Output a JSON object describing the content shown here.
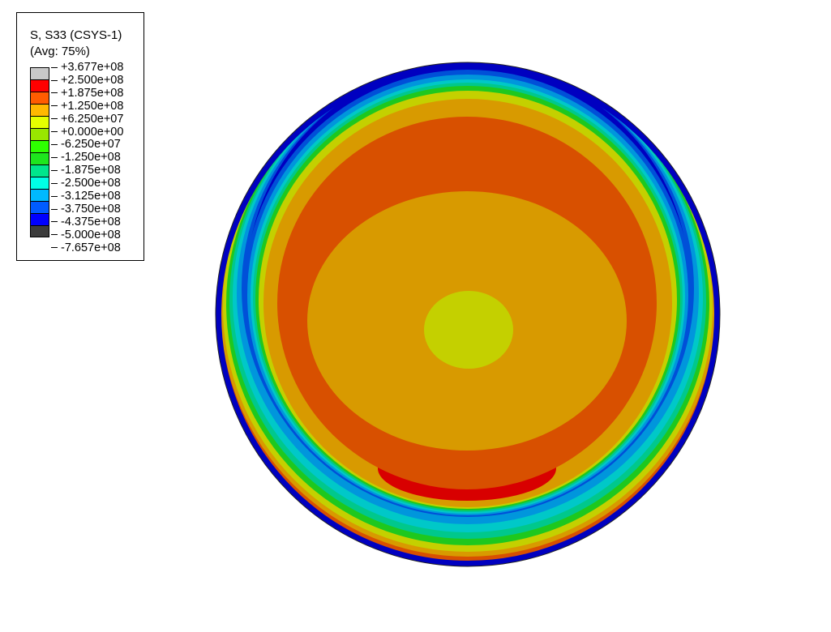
{
  "chart_data": {
    "type": "heatmap",
    "title": "S, S33 (CSYS-1)",
    "subtitle": "(Avg: 75%)",
    "legend_position": "top-left",
    "levels": [
      "+3.677e+08",
      "+2.500e+08",
      "+1.875e+08",
      "+1.250e+08",
      "+6.250e+07",
      "+0.000e+00",
      "-6.250e+07",
      "-1.250e+08",
      "-1.875e+08",
      "-2.500e+08",
      "-3.125e+08",
      "-3.750e+08",
      "-4.375e+08",
      "-5.000e+08",
      "-7.657e+08"
    ],
    "band_colors": [
      "#C8C8C8",
      "#FF0000",
      "#FF5C00",
      "#FFB900",
      "#E6FF00",
      "#99E600",
      "#2EFF00",
      "#1EE61E",
      "#00E68C",
      "#00FFE6",
      "#00B9FF",
      "#005CFF",
      "#0000FF",
      "#3C3C3C"
    ],
    "plot_shaded_colors": {
      "red": "#D80000",
      "orange_red": "#D85000",
      "orange": "#D89A00",
      "yellow": "#C4D000",
      "green": "#1EC81E",
      "teal": "#00C88C",
      "cyan": "#00C8C8",
      "light_blue": "#0096DC",
      "blue": "#0050D8",
      "dark_blue": "#0000C0"
    }
  }
}
